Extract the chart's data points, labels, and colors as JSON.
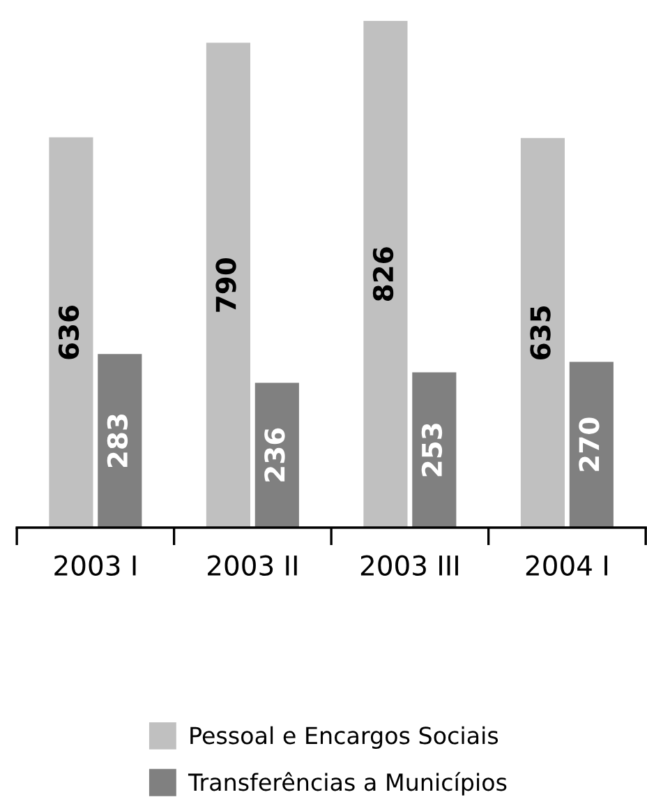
{
  "chart_data": {
    "type": "bar",
    "categories": [
      "2003 I",
      "2003 II",
      "2003 III",
      "2004 I"
    ],
    "series": [
      {
        "name": "Pessoal e Encargos Sociais",
        "color": "#c0c0c0",
        "values": [
          636,
          790,
          826,
          635
        ]
      },
      {
        "name": "Transferências a Municípios",
        "color": "#808080",
        "values": [
          283,
          236,
          253,
          270
        ]
      }
    ],
    "data_labels": true,
    "legend": "bottom"
  }
}
